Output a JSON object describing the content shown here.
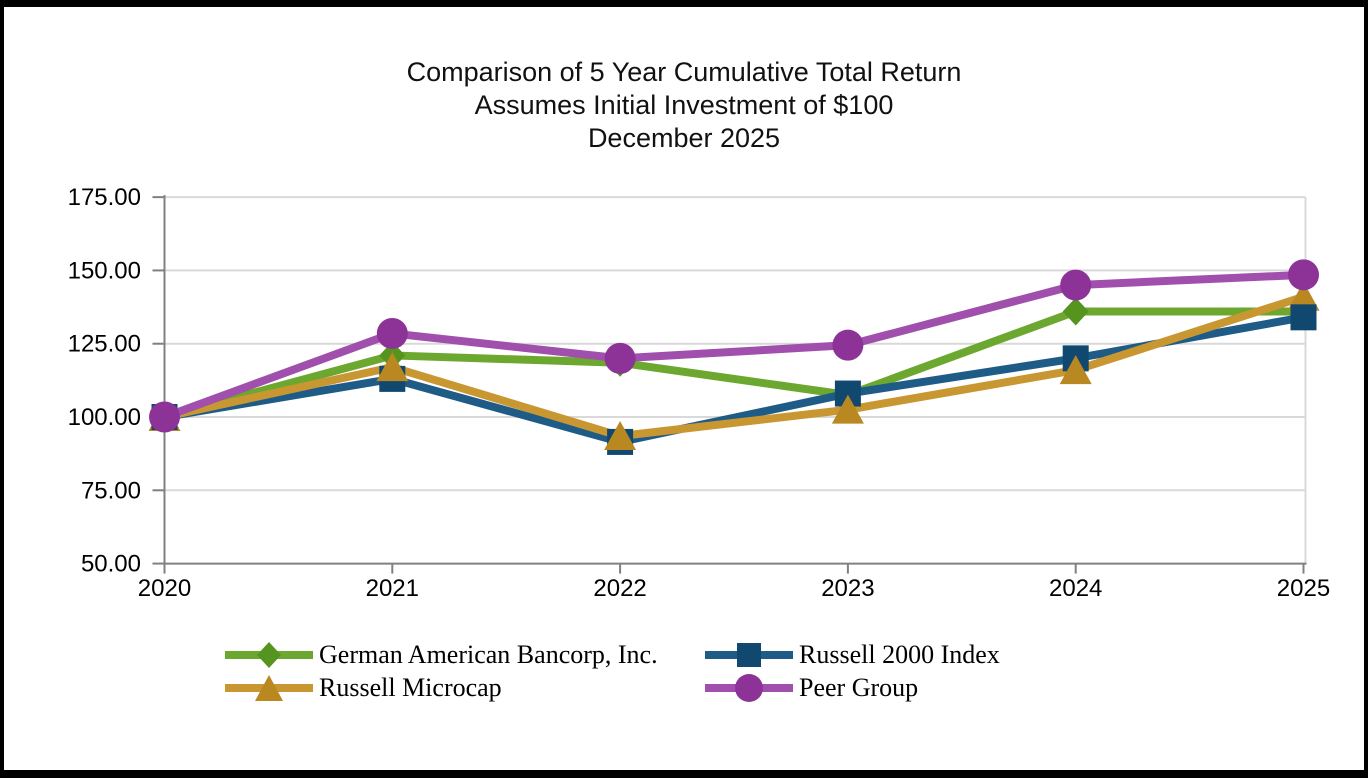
{
  "title": {
    "line1": "Comparison of 5 Year Cumulative Total Return",
    "line2": "Assumes Initial Investment of $100",
    "line3": "December 2025"
  },
  "chart_data": {
    "type": "line",
    "categories": [
      "2020",
      "2021",
      "2022",
      "2023",
      "2024",
      "2025"
    ],
    "series": [
      {
        "name": "German American Bancorp, Inc.",
        "marker": "diamond",
        "line_color": "#6CA82F",
        "marker_color": "#569420",
        "values": [
          100.0,
          121.0,
          118.5,
          107.5,
          136.0,
          136.0
        ]
      },
      {
        "name": "Russell 2000 Index",
        "marker": "square",
        "line_color": "#1E5C87",
        "marker_color": "#10486F",
        "values": [
          100.0,
          113.0,
          91.5,
          108.0,
          120.0,
          134.0
        ]
      },
      {
        "name": "Russell Microcap",
        "marker": "triangle",
        "line_color": "#C99732",
        "marker_color": "#B98820",
        "values": [
          100.0,
          117.0,
          93.5,
          102.5,
          116.0,
          141.0
        ]
      },
      {
        "name": "Peer Group",
        "marker": "circle",
        "line_color": "#A04FAC",
        "marker_color": "#8D3397",
        "values": [
          100.0,
          128.5,
          120.0,
          124.5,
          145.0,
          148.5
        ]
      }
    ],
    "y_ticks": [
      {
        "label": "175.00",
        "value": 175
      },
      {
        "label": "150.00",
        "value": 150
      },
      {
        "label": "125.00",
        "value": 125
      },
      {
        "label": "100.00",
        "value": 100
      },
      {
        "label": "75.00",
        "value": 75
      },
      {
        "label": "50.00",
        "value": 50
      }
    ],
    "ylim": [
      50,
      175
    ],
    "grid": true,
    "legend_position": "bottom",
    "axis_color": "#808080",
    "grid_color": "#D9D9D9",
    "label_color": "#000000",
    "marker_draw_order": [
      [
        0,
        2,
        1,
        3
      ],
      [
        0,
        1,
        2,
        3
      ],
      [
        0,
        1,
        2,
        3
      ],
      [
        0,
        1,
        2,
        3
      ],
      [
        0,
        1,
        2,
        3
      ],
      [
        0,
        2,
        1,
        3
      ]
    ]
  }
}
